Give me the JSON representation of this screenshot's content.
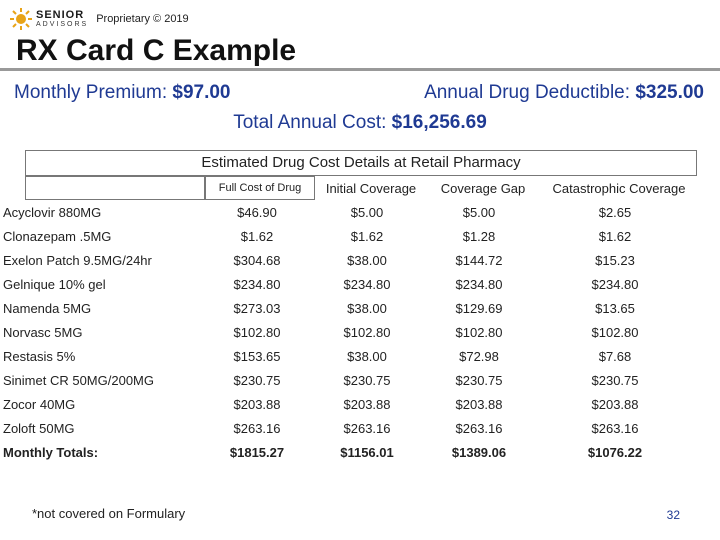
{
  "header": {
    "logo_main": "SENIOR",
    "logo_sub": "ADVISORS",
    "proprietary": "Proprietary © 2019",
    "logo_color": "#e8a317"
  },
  "title": "RX Card C Example",
  "summary": {
    "premium_label": "Monthly Premium: ",
    "premium_value": "$97.00",
    "deductible_label": "Annual Drug Deductible: ",
    "deductible_value": "$325.00",
    "total_label": "Total Annual Cost: ",
    "total_value": "$16,256.69",
    "text_color": "#1f3a93"
  },
  "table": {
    "title": "Estimated Drug Cost Details at Retail Pharmacy",
    "headers": [
      "",
      "Full Cost of Drug",
      "Initial Coverage",
      "Coverage Gap",
      "Catastrophic Coverage"
    ],
    "rows": [
      [
        "Acyclovir 880MG",
        "$46.90",
        "$5.00",
        "$5.00",
        "$2.65"
      ],
      [
        "Clonazepam .5MG",
        "$1.62",
        "$1.62",
        "$1.28",
        "$1.62"
      ],
      [
        "Exelon Patch 9.5MG/24hr",
        "$304.68",
        "$38.00",
        "$144.72",
        "$15.23"
      ],
      [
        "Gelnique 10% gel",
        "$234.80",
        "$234.80",
        "$234.80",
        "$234.80"
      ],
      [
        "Namenda 5MG",
        "$273.03",
        "$38.00",
        "$129.69",
        "$13.65"
      ],
      [
        "Norvasc 5MG",
        "$102.80",
        "$102.80",
        "$102.80",
        "$102.80"
      ],
      [
        "Restasis 5%",
        "$153.65",
        "$38.00",
        "$72.98",
        "$7.68"
      ],
      [
        "Sinimet CR 50MG/200MG",
        "$230.75",
        "$230.75",
        "$230.75",
        "$230.75"
      ],
      [
        "Zocor 40MG",
        "$203.88",
        "$203.88",
        "$203.88",
        "$203.88"
      ],
      [
        "Zoloft 50MG",
        "$263.16",
        "$263.16",
        "$263.16",
        "$263.16"
      ]
    ],
    "totals": [
      "Monthly Totals:",
      "$1815.27",
      "$1156.01",
      "$1389.06",
      "$1076.22"
    ]
  },
  "footnote": "*not covered on Formulary",
  "page_number": "32"
}
